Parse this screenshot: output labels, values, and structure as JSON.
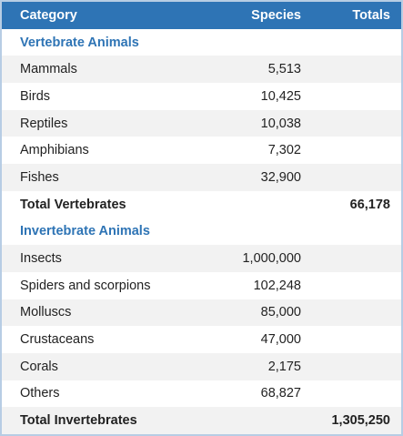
{
  "table": {
    "header": [
      "Category",
      "Species",
      "Totals"
    ],
    "sections": [
      {
        "title": "Vertebrate Animals",
        "rows": [
          [
            "Mammals",
            "5,513"
          ],
          [
            "Birds",
            "10,425"
          ],
          [
            "Reptiles",
            "10,038"
          ],
          [
            "Amphibians",
            "7,302"
          ],
          [
            "Fishes",
            "32,900"
          ]
        ],
        "total": {
          "label": "Total Vertebrates",
          "value": "66,178"
        }
      },
      {
        "title": "Invertebrate Animals",
        "rows": [
          [
            "Insects",
            "1,000,000"
          ],
          [
            "Spiders and scorpions",
            "102,248"
          ],
          [
            "Molluscs",
            "85,000"
          ],
          [
            "Crustaceans",
            "47,000"
          ],
          [
            "Corals",
            "2,175"
          ],
          [
            "Others",
            "68,827"
          ]
        ],
        "total": {
          "label": "Total Invertebrates",
          "value": "1,305,250"
        }
      }
    ]
  }
}
